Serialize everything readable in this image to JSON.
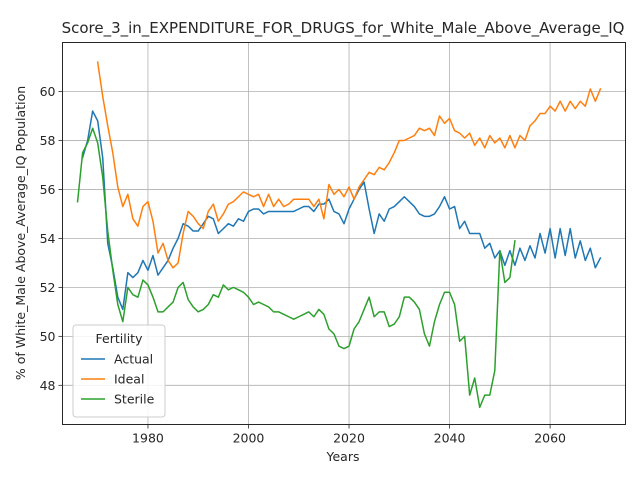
{
  "chart_data": {
    "type": "line",
    "title": "Score_3_in_EXPENDITURE_FOR_DRUGS_for_White_Male_Above_Average_IQ",
    "xlabel": "Years",
    "ylabel": "% of White_Male Above_Average_IQ Population",
    "xlim": [
      1963,
      2075
    ],
    "ylim": [
      46.4,
      62.0
    ],
    "xticks": [
      1980,
      2000,
      2020,
      2040,
      2060
    ],
    "yticks": [
      48,
      50,
      52,
      54,
      56,
      58,
      60
    ],
    "grid": true,
    "legend": {
      "title": "Fertility",
      "placement": "lower-left"
    },
    "series": [
      {
        "name": "Actual",
        "color": "#1f77b4",
        "points": [
          [
            1967,
            57.3
          ],
          [
            1968,
            58.0
          ],
          [
            1969,
            59.2
          ],
          [
            1970,
            58.8
          ],
          [
            1971,
            57.3
          ],
          [
            1972,
            53.8
          ],
          [
            1973,
            52.8
          ],
          [
            1974,
            51.6
          ],
          [
            1975,
            51.1
          ],
          [
            1976,
            52.6
          ],
          [
            1977,
            52.4
          ],
          [
            1978,
            52.6
          ],
          [
            1979,
            53.1
          ],
          [
            1980,
            52.7
          ],
          [
            1981,
            53.3
          ],
          [
            1982,
            52.5
          ],
          [
            1983,
            52.8
          ],
          [
            1984,
            53.1
          ],
          [
            1985,
            53.6
          ],
          [
            1986,
            54.0
          ],
          [
            1987,
            54.6
          ],
          [
            1988,
            54.5
          ],
          [
            1989,
            54.3
          ],
          [
            1990,
            54.3
          ],
          [
            1991,
            54.6
          ],
          [
            1992,
            54.9
          ],
          [
            1993,
            54.8
          ],
          [
            1994,
            54.2
          ],
          [
            1995,
            54.4
          ],
          [
            1996,
            54.6
          ],
          [
            1997,
            54.5
          ],
          [
            1998,
            54.8
          ],
          [
            1999,
            54.7
          ],
          [
            2000,
            55.1
          ],
          [
            2001,
            55.2
          ],
          [
            2002,
            55.2
          ],
          [
            2003,
            55.0
          ],
          [
            2004,
            55.1
          ],
          [
            2005,
            55.1
          ],
          [
            2006,
            55.1
          ],
          [
            2007,
            55.1
          ],
          [
            2008,
            55.1
          ],
          [
            2009,
            55.1
          ],
          [
            2010,
            55.2
          ],
          [
            2011,
            55.3
          ],
          [
            2012,
            55.3
          ],
          [
            2013,
            55.1
          ],
          [
            2014,
            55.4
          ],
          [
            2015,
            55.4
          ],
          [
            2016,
            55.6
          ],
          [
            2017,
            55.1
          ],
          [
            2018,
            55.0
          ],
          [
            2019,
            54.6
          ],
          [
            2020,
            55.2
          ],
          [
            2021,
            55.6
          ],
          [
            2022,
            56.0
          ],
          [
            2023,
            56.3
          ],
          [
            2024,
            55.2
          ],
          [
            2025,
            54.2
          ],
          [
            2026,
            55.0
          ],
          [
            2027,
            54.7
          ],
          [
            2028,
            55.2
          ],
          [
            2029,
            55.3
          ],
          [
            2030,
            55.5
          ],
          [
            2031,
            55.7
          ],
          [
            2032,
            55.5
          ],
          [
            2033,
            55.3
          ],
          [
            2034,
            55.0
          ],
          [
            2035,
            54.9
          ],
          [
            2036,
            54.9
          ],
          [
            2037,
            55.0
          ],
          [
            2038,
            55.3
          ],
          [
            2039,
            55.7
          ],
          [
            2040,
            55.2
          ],
          [
            2041,
            55.3
          ],
          [
            2042,
            54.4
          ],
          [
            2043,
            54.7
          ],
          [
            2044,
            54.2
          ],
          [
            2045,
            54.2
          ],
          [
            2046,
            54.2
          ],
          [
            2047,
            53.6
          ],
          [
            2048,
            53.8
          ],
          [
            2049,
            53.2
          ],
          [
            2050,
            53.5
          ],
          [
            2051,
            52.9
          ],
          [
            2052,
            53.5
          ],
          [
            2053,
            52.9
          ],
          [
            2054,
            53.6
          ],
          [
            2055,
            53.1
          ],
          [
            2056,
            53.7
          ],
          [
            2057,
            53.2
          ],
          [
            2058,
            54.2
          ],
          [
            2059,
            53.4
          ],
          [
            2060,
            54.4
          ],
          [
            2061,
            53.2
          ],
          [
            2062,
            54.4
          ],
          [
            2063,
            53.3
          ],
          [
            2064,
            54.4
          ],
          [
            2065,
            53.2
          ],
          [
            2066,
            53.9
          ],
          [
            2067,
            53.1
          ],
          [
            2068,
            53.6
          ],
          [
            2069,
            52.8
          ],
          [
            2070,
            53.2
          ]
        ]
      },
      {
        "name": "Ideal",
        "color": "#ff7f0e",
        "points": [
          [
            1970,
            61.2
          ],
          [
            1971,
            59.8
          ],
          [
            1972,
            58.6
          ],
          [
            1973,
            57.5
          ],
          [
            1974,
            56.1
          ],
          [
            1975,
            55.3
          ],
          [
            1976,
            55.8
          ],
          [
            1977,
            54.8
          ],
          [
            1978,
            54.5
          ],
          [
            1979,
            55.3
          ],
          [
            1980,
            55.5
          ],
          [
            1981,
            54.7
          ],
          [
            1982,
            53.4
          ],
          [
            1983,
            53.8
          ],
          [
            1984,
            53.1
          ],
          [
            1985,
            52.8
          ],
          [
            1986,
            53.0
          ],
          [
            1987,
            54.2
          ],
          [
            1988,
            55.1
          ],
          [
            1989,
            54.9
          ],
          [
            1990,
            54.6
          ],
          [
            1991,
            54.4
          ],
          [
            1992,
            55.1
          ],
          [
            1993,
            55.4
          ],
          [
            1994,
            54.7
          ],
          [
            1995,
            55.0
          ],
          [
            1996,
            55.4
          ],
          [
            1997,
            55.5
          ],
          [
            1998,
            55.7
          ],
          [
            1999,
            55.9
          ],
          [
            2000,
            55.8
          ],
          [
            2001,
            55.7
          ],
          [
            2002,
            55.8
          ],
          [
            2003,
            55.3
          ],
          [
            2004,
            55.8
          ],
          [
            2005,
            55.3
          ],
          [
            2006,
            55.6
          ],
          [
            2007,
            55.3
          ],
          [
            2008,
            55.4
          ],
          [
            2009,
            55.6
          ],
          [
            2010,
            55.6
          ],
          [
            2011,
            55.6
          ],
          [
            2012,
            55.6
          ],
          [
            2013,
            55.3
          ],
          [
            2014,
            55.6
          ],
          [
            2015,
            54.8
          ],
          [
            2016,
            56.2
          ],
          [
            2017,
            55.8
          ],
          [
            2018,
            56.0
          ],
          [
            2019,
            55.7
          ],
          [
            2020,
            56.1
          ],
          [
            2021,
            55.6
          ],
          [
            2022,
            56.1
          ],
          [
            2023,
            56.4
          ],
          [
            2024,
            56.7
          ],
          [
            2025,
            56.6
          ],
          [
            2026,
            56.9
          ],
          [
            2027,
            56.8
          ],
          [
            2028,
            57.1
          ],
          [
            2029,
            57.5
          ],
          [
            2030,
            58.0
          ],
          [
            2031,
            58.0
          ],
          [
            2032,
            58.1
          ],
          [
            2033,
            58.2
          ],
          [
            2034,
            58.5
          ],
          [
            2035,
            58.4
          ],
          [
            2036,
            58.5
          ],
          [
            2037,
            58.2
          ],
          [
            2038,
            59.0
          ],
          [
            2039,
            58.7
          ],
          [
            2040,
            58.9
          ],
          [
            2041,
            58.4
          ],
          [
            2042,
            58.3
          ],
          [
            2043,
            58.1
          ],
          [
            2044,
            58.3
          ],
          [
            2045,
            57.8
          ],
          [
            2046,
            58.1
          ],
          [
            2047,
            57.7
          ],
          [
            2048,
            58.2
          ],
          [
            2049,
            57.9
          ],
          [
            2050,
            58.1
          ],
          [
            2051,
            57.7
          ],
          [
            2052,
            58.2
          ],
          [
            2053,
            57.7
          ],
          [
            2054,
            58.2
          ],
          [
            2055,
            58.0
          ],
          [
            2056,
            58.6
          ],
          [
            2057,
            58.8
          ],
          [
            2058,
            59.1
          ],
          [
            2059,
            59.1
          ],
          [
            2060,
            59.4
          ],
          [
            2061,
            59.2
          ],
          [
            2062,
            59.6
          ],
          [
            2063,
            59.2
          ],
          [
            2064,
            59.6
          ],
          [
            2065,
            59.3
          ],
          [
            2066,
            59.6
          ],
          [
            2067,
            59.4
          ],
          [
            2068,
            60.1
          ],
          [
            2069,
            59.6
          ],
          [
            2070,
            60.1
          ]
        ]
      },
      {
        "name": "Sterile",
        "color": "#2ca02c",
        "points": [
          [
            1966,
            55.5
          ],
          [
            1967,
            57.5
          ],
          [
            1968,
            57.9
          ],
          [
            1969,
            58.5
          ],
          [
            1970,
            57.9
          ],
          [
            1971,
            56.5
          ],
          [
            1972,
            54.3
          ],
          [
            1973,
            52.7
          ],
          [
            1974,
            51.3
          ],
          [
            1975,
            50.6
          ],
          [
            1976,
            52.0
          ],
          [
            1977,
            51.7
          ],
          [
            1978,
            51.6
          ],
          [
            1979,
            52.3
          ],
          [
            1980,
            52.1
          ],
          [
            1981,
            51.6
          ],
          [
            1982,
            51.0
          ],
          [
            1983,
            51.0
          ],
          [
            1984,
            51.2
          ],
          [
            1985,
            51.4
          ],
          [
            1986,
            52.0
          ],
          [
            1987,
            52.2
          ],
          [
            1988,
            51.5
          ],
          [
            1989,
            51.2
          ],
          [
            1990,
            51.0
          ],
          [
            1991,
            51.1
          ],
          [
            1992,
            51.3
          ],
          [
            1993,
            51.7
          ],
          [
            1994,
            51.6
          ],
          [
            1995,
            52.1
          ],
          [
            1996,
            51.9
          ],
          [
            1997,
            52.0
          ],
          [
            1998,
            51.9
          ],
          [
            1999,
            51.8
          ],
          [
            2000,
            51.6
          ],
          [
            2001,
            51.3
          ],
          [
            2002,
            51.4
          ],
          [
            2003,
            51.3
          ],
          [
            2004,
            51.2
          ],
          [
            2005,
            51.0
          ],
          [
            2006,
            51.0
          ],
          [
            2007,
            50.9
          ],
          [
            2008,
            50.8
          ],
          [
            2009,
            50.7
          ],
          [
            2010,
            50.8
          ],
          [
            2011,
            50.9
          ],
          [
            2012,
            51.0
          ],
          [
            2013,
            50.8
          ],
          [
            2014,
            51.1
          ],
          [
            2015,
            50.9
          ],
          [
            2016,
            50.3
          ],
          [
            2017,
            50.1
          ],
          [
            2018,
            49.6
          ],
          [
            2019,
            49.5
          ],
          [
            2020,
            49.6
          ],
          [
            2021,
            50.3
          ],
          [
            2022,
            50.6
          ],
          [
            2023,
            51.1
          ],
          [
            2024,
            51.6
          ],
          [
            2025,
            50.8
          ],
          [
            2026,
            51.0
          ],
          [
            2027,
            51.0
          ],
          [
            2028,
            50.4
          ],
          [
            2029,
            50.5
          ],
          [
            2030,
            50.8
          ],
          [
            2031,
            51.6
          ],
          [
            2032,
            51.6
          ],
          [
            2033,
            51.4
          ],
          [
            2034,
            51.1
          ],
          [
            2035,
            50.1
          ],
          [
            2036,
            49.6
          ],
          [
            2037,
            50.6
          ],
          [
            2038,
            51.3
          ],
          [
            2039,
            51.8
          ],
          [
            2040,
            51.8
          ],
          [
            2041,
            51.3
          ],
          [
            2042,
            49.8
          ],
          [
            2043,
            50.0
          ],
          [
            2044,
            47.6
          ],
          [
            2045,
            48.3
          ],
          [
            2046,
            47.1
          ],
          [
            2047,
            47.6
          ],
          [
            2048,
            47.6
          ],
          [
            2049,
            48.6
          ],
          [
            2050,
            53.5
          ],
          [
            2051,
            52.2
          ],
          [
            2052,
            52.4
          ],
          [
            2053,
            53.9
          ]
        ]
      }
    ]
  }
}
